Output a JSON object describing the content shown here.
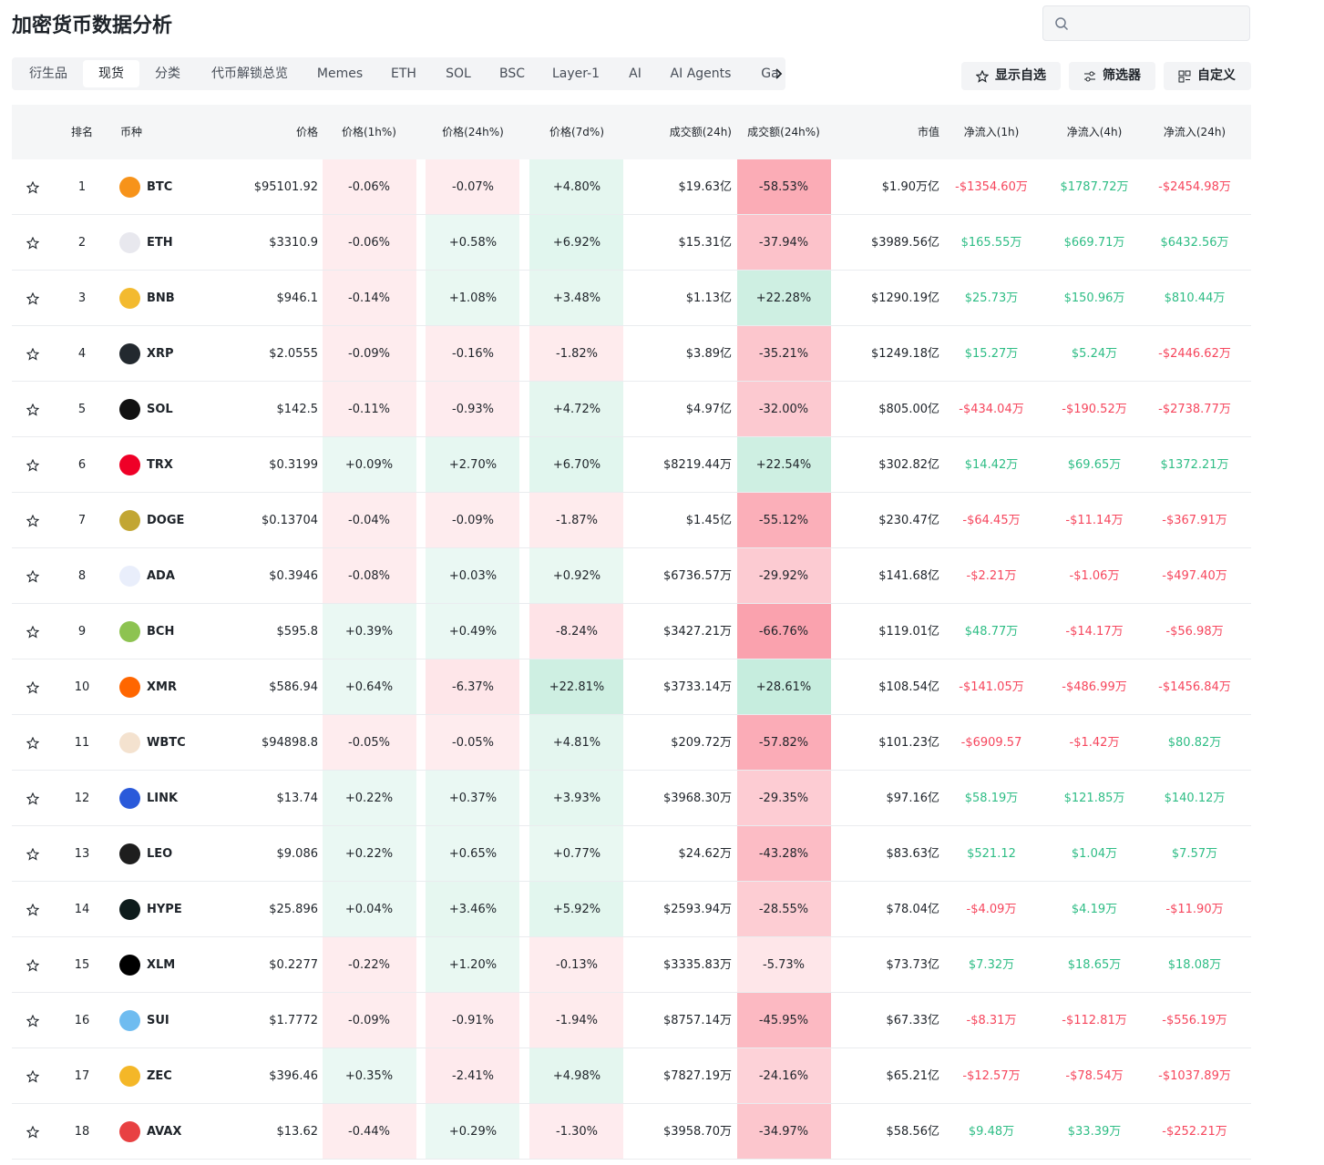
{
  "header": {
    "title": "加密货币数据分析"
  },
  "tabs": [
    "衍生品",
    "现货",
    "分类",
    "代币解锁总览",
    "Memes",
    "ETH",
    "SOL",
    "BSC",
    "Layer-1",
    "AI",
    "AI Agents",
    "Ga"
  ],
  "buttons": [
    "显示自选",
    "筛选器",
    "自定义"
  ],
  "table": {
    "columns": [
      "排名",
      "币种",
      "价格",
      "价格(1h%)",
      "价格(24h%)",
      "价格(7d%)",
      "成交额(24h)",
      "成交额(24h%)",
      "市值",
      "净流入(1h)",
      "净流入(4h)",
      "净流入(24h)"
    ],
    "rows": [
      [
        1,
        "BTC",
        "$95101.92",
        "-0.06%",
        "-0.07%",
        "+4.80%",
        "$19.63亿",
        "-58.53%",
        "$1.90万亿",
        "-$1354.60万",
        "$1787.72万",
        "-$2454.98万"
      ],
      [
        2,
        "ETH",
        "$3310.9",
        "-0.06%",
        "+0.58%",
        "+6.92%",
        "$15.31亿",
        "-37.94%",
        "$3989.56亿",
        "$165.55万",
        "$669.71万",
        "$6432.56万"
      ],
      [
        3,
        "BNB",
        "$946.1",
        "-0.14%",
        "+1.08%",
        "+3.48%",
        "$1.13亿",
        "+22.28%",
        "$1290.19亿",
        "$25.73万",
        "$150.96万",
        "$810.44万"
      ],
      [
        4,
        "XRP",
        "$2.0555",
        "-0.09%",
        "-0.16%",
        "-1.82%",
        "$3.89亿",
        "-35.21%",
        "$1249.18亿",
        "$15.27万",
        "$5.24万",
        "-$2446.62万"
      ],
      [
        5,
        "SOL",
        "$142.5",
        "-0.11%",
        "-0.93%",
        "+4.72%",
        "$4.97亿",
        "-32.00%",
        "$805.00亿",
        "-$434.04万",
        "-$190.52万",
        "-$2738.77万"
      ],
      [
        6,
        "TRX",
        "$0.3199",
        "+0.09%",
        "+2.70%",
        "+6.70%",
        "$8219.44万",
        "+22.54%",
        "$302.82亿",
        "$14.42万",
        "$69.65万",
        "$1372.21万"
      ],
      [
        7,
        "DOGE",
        "$0.13704",
        "-0.04%",
        "-0.09%",
        "-1.87%",
        "$1.45亿",
        "-55.12%",
        "$230.47亿",
        "-$64.45万",
        "-$11.14万",
        "-$367.91万"
      ],
      [
        8,
        "ADA",
        "$0.3946",
        "-0.08%",
        "+0.03%",
        "+0.92%",
        "$6736.57万",
        "-29.92%",
        "$141.68亿",
        "-$2.21万",
        "-$1.06万",
        "-$497.40万"
      ],
      [
        9,
        "BCH",
        "$595.8",
        "+0.39%",
        "+0.49%",
        "-8.24%",
        "$3427.21万",
        "-66.76%",
        "$119.01亿",
        "$48.77万",
        "-$14.17万",
        "-$56.98万"
      ],
      [
        10,
        "XMR",
        "$586.94",
        "+0.64%",
        "-6.37%",
        "+22.81%",
        "$3733.14万",
        "+28.61%",
        "$108.54亿",
        "-$141.05万",
        "-$486.99万",
        "-$1456.84万"
      ],
      [
        11,
        "WBTC",
        "$94898.8",
        "-0.05%",
        "-0.05%",
        "+4.81%",
        "$209.72万",
        "-57.82%",
        "$101.23亿",
        "-$6909.57",
        "-$1.42万",
        "$80.82万"
      ],
      [
        12,
        "LINK",
        "$13.74",
        "+0.22%",
        "+0.37%",
        "+3.93%",
        "$3968.30万",
        "-29.35%",
        "$97.16亿",
        "$58.19万",
        "$121.85万",
        "$140.12万"
      ],
      [
        13,
        "LEO",
        "$9.086",
        "+0.22%",
        "+0.65%",
        "+0.77%",
        "$24.62万",
        "-43.28%",
        "$83.63亿",
        "$521.12",
        "$1.04万",
        "$7.57万"
      ],
      [
        14,
        "HYPE",
        "$25.896",
        "+0.04%",
        "+3.46%",
        "+5.92%",
        "$2593.94万",
        "-28.55%",
        "$78.04亿",
        "-$4.09万",
        "$4.19万",
        "-$11.90万"
      ],
      [
        15,
        "XLM",
        "$0.2277",
        "-0.22%",
        "+1.20%",
        "-0.13%",
        "$3335.83万",
        "-5.73%",
        "$73.73亿",
        "$7.32万",
        "$18.65万",
        "$18.08万"
      ],
      [
        16,
        "SUI",
        "$1.7772",
        "-0.09%",
        "-0.91%",
        "-1.94%",
        "$8757.14万",
        "-45.95%",
        "$67.33亿",
        "-$8.31万",
        "-$112.81万",
        "-$556.19万"
      ],
      [
        17,
        "ZEC",
        "$396.46",
        "+0.35%",
        "-2.41%",
        "+4.98%",
        "$7827.19万",
        "-24.16%",
        "$65.21亿",
        "-$12.57万",
        "-$78.54万",
        "-$1037.89万"
      ],
      [
        18,
        "AVAX",
        "$13.62",
        "-0.44%",
        "+0.29%",
        "-1.30%",
        "$3958.70万",
        "-34.97%",
        "$58.56亿",
        "$9.48万",
        "$33.39万",
        "-$252.21万"
      ]
    ]
  }
}
